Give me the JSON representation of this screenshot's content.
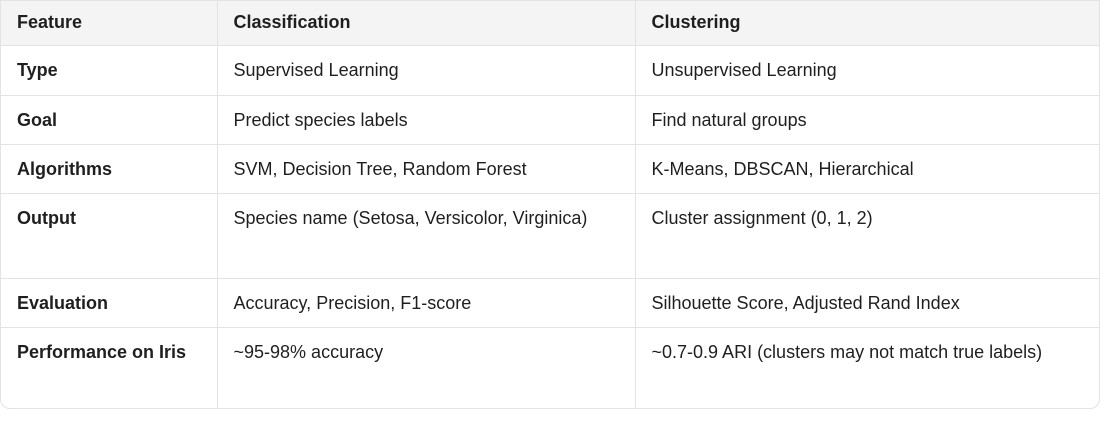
{
  "table": {
    "headers": [
      "Feature",
      "Classification",
      "Clustering"
    ],
    "rows": [
      [
        "Type",
        "Supervised Learning",
        "Unsupervised Learning"
      ],
      [
        "Goal",
        "Predict species labels",
        "Find natural groups"
      ],
      [
        "Algorithms",
        "SVM, Decision Tree, Random Forest",
        "K-Means, DBSCAN, Hierarchical"
      ],
      [
        "Output",
        "Species name (Setosa, Versicolor, Virginica)",
        "Cluster assignment (0, 1, 2)"
      ],
      [
        "Evaluation",
        "Accuracy, Precision, F1-score",
        "Silhouette Score, Adjusted Rand Index"
      ],
      [
        "Performance on Iris",
        "~95-98% accuracy",
        "~0.7-0.9 ARI (clusters may not match true labels)"
      ]
    ]
  }
}
